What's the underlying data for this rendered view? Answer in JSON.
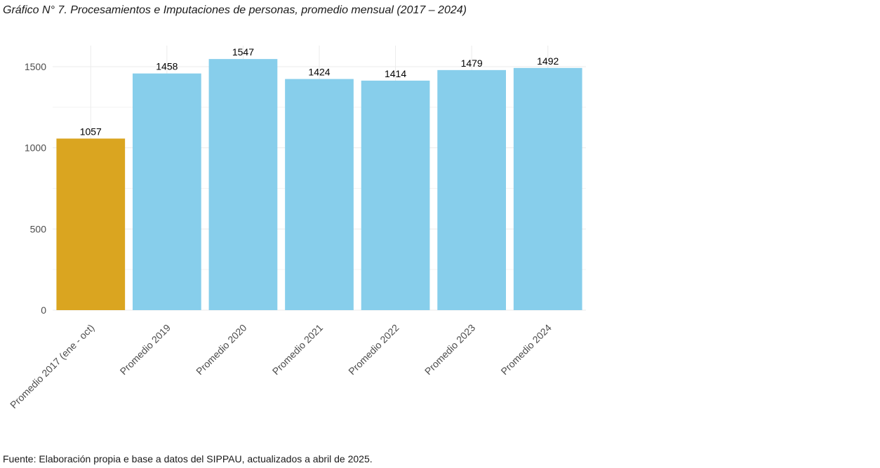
{
  "title": "Gráfico N° 7. Procesamientos e Imputaciones de personas, promedio mensual (2017 – 2024)",
  "source": "Fuente: Elaboración propia e base a datos del SIPPAU, actualizados a abril de 2025.",
  "colors": {
    "highlight": "#DAA520",
    "bar": "#87CEEB",
    "grid": "#ebebeb",
    "axis_text": "#4d4d4d"
  },
  "chart_data": {
    "type": "bar",
    "categories": [
      "Promedio 2017 (ene - oct)",
      "Promedio 2019",
      "Promedio 2020",
      "Promedio 2021",
      "Promedio 2022",
      "Promedio 2023",
      "Promedio 2024"
    ],
    "values": [
      1057,
      1458,
      1547,
      1424,
      1414,
      1479,
      1492
    ],
    "bar_colors": [
      "#DAA520",
      "#87CEEB",
      "#87CEEB",
      "#87CEEB",
      "#87CEEB",
      "#87CEEB",
      "#87CEEB"
    ],
    "ylim": [
      0,
      1625
    ],
    "yticks": [
      0,
      500,
      1000,
      1500
    ],
    "grid": true,
    "legend": "none"
  }
}
